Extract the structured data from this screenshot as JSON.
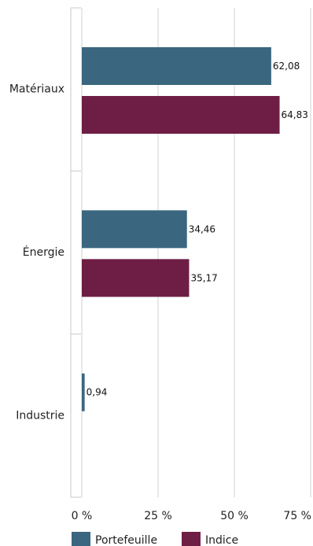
{
  "chart_data": {
    "type": "bar",
    "orientation": "horizontal",
    "categories": [
      "Matériaux",
      "Énergie",
      "Industrie"
    ],
    "series": [
      {
        "name": "Portefeuille",
        "color": "#3a6680",
        "values": [
          62.08,
          34.46,
          0.94
        ],
        "labels": [
          "62,08",
          "34,46",
          "0,94"
        ]
      },
      {
        "name": "Indice",
        "color": "#6e1e45",
        "values": [
          64.83,
          35.17,
          null
        ],
        "labels": [
          "64,83",
          "35,17",
          ""
        ]
      }
    ],
    "xlim": [
      0,
      75
    ],
    "xticks": [
      {
        "value": 0,
        "label": "0 %"
      },
      {
        "value": 25,
        "label": "25 %"
      },
      {
        "value": 50,
        "label": "50 %"
      },
      {
        "value": 75,
        "label": "75 %"
      }
    ],
    "grid": true,
    "legend": "bottom"
  }
}
